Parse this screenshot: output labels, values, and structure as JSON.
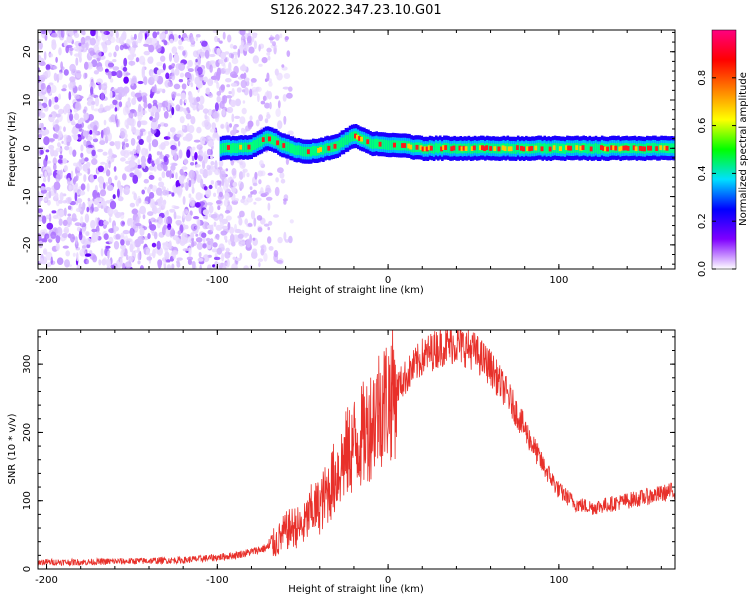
{
  "title": "S126.2022.347.23.10.G01",
  "chart_data": [
    {
      "type": "heatmap",
      "xlabel": "Height of straight line (km)",
      "ylabel": "Frequency (Hz)",
      "xlim": [
        -205,
        168
      ],
      "ylim": [
        -25,
        24.5
      ],
      "xticks": [
        -200,
        -100,
        0,
        100
      ],
      "xtick_labels": [
        "-200",
        "-100",
        "0",
        "100"
      ],
      "yticks": [
        -20,
        -10,
        0,
        10,
        20
      ],
      "ytick_labels": [
        "-20",
        "-10",
        "0",
        "10",
        "20"
      ],
      "noise_region_x": [
        -205,
        -72
      ],
      "noise_region_y": [
        -25,
        24.5
      ],
      "ridge": {
        "x_start": -98,
        "x_end": 168,
        "centerline": [
          [
            -98,
            0.0
          ],
          [
            -80,
            0.3
          ],
          [
            -70,
            2.2
          ],
          [
            -60,
            0.4
          ],
          [
            -50,
            -0.8
          ],
          [
            -40,
            -0.4
          ],
          [
            -30,
            0.5
          ],
          [
            -20,
            2.6
          ],
          [
            -10,
            1.0
          ],
          [
            0,
            0.8
          ],
          [
            10,
            0.5
          ],
          [
            20,
            0.0
          ],
          [
            40,
            0.0
          ],
          [
            60,
            0.0
          ],
          [
            80,
            0.0
          ],
          [
            100,
            0.0
          ],
          [
            120,
            0.0
          ],
          [
            140,
            0.0
          ],
          [
            168,
            0.0
          ]
        ]
      },
      "colorbar": {
        "label": "Normalized spectral amplitude",
        "range": [
          0.0,
          1.0
        ],
        "ticks": [
          0.0,
          0.2,
          0.4,
          0.6,
          0.8
        ],
        "tick_labels": [
          "0.0",
          "0.2",
          "0.4",
          "0.6",
          "0.8"
        ],
        "colors": [
          "#ffffff",
          "#7f00ff",
          "#0000ff",
          "#00e0ff",
          "#00ff00",
          "#ffff00",
          "#ff8000",
          "#ff0000",
          "#ff0080"
        ]
      }
    },
    {
      "type": "line",
      "xlabel": "Height of straight line (km)",
      "ylabel": "SNR (10 * v/v)",
      "xlim": [
        -205,
        168
      ],
      "ylim": [
        0,
        350
      ],
      "xticks": [
        -200,
        -100,
        0,
        100
      ],
      "xtick_labels": [
        "-200",
        "-100",
        "0",
        "100"
      ],
      "yticks": [
        0,
        100,
        200,
        300
      ],
      "ytick_labels": [
        "0",
        "100",
        "200",
        "300"
      ],
      "color": "#e8302a",
      "series": [
        {
          "x": [
            -205,
            -180,
            -160,
            -140,
            -120,
            -100,
            -90,
            -80,
            -70,
            -65,
            -60,
            -55,
            -50,
            -45,
            -40,
            -35,
            -30,
            -25,
            -20,
            -15,
            -10,
            -5,
            0,
            10,
            20,
            30,
            40,
            50,
            60,
            70,
            80,
            90,
            100,
            110,
            120,
            130,
            140,
            150,
            160,
            168
          ],
          "values": [
            10,
            10,
            11,
            12,
            13,
            17,
            20,
            25,
            32,
            40,
            55,
            62,
            60,
            85,
            92,
            115,
            140,
            165,
            182,
            195,
            215,
            240,
            250,
            280,
            310,
            325,
            330,
            320,
            295,
            255,
            205,
            155,
            115,
            95,
            90,
            95,
            100,
            105,
            110,
            115
          ]
        }
      ]
    }
  ]
}
